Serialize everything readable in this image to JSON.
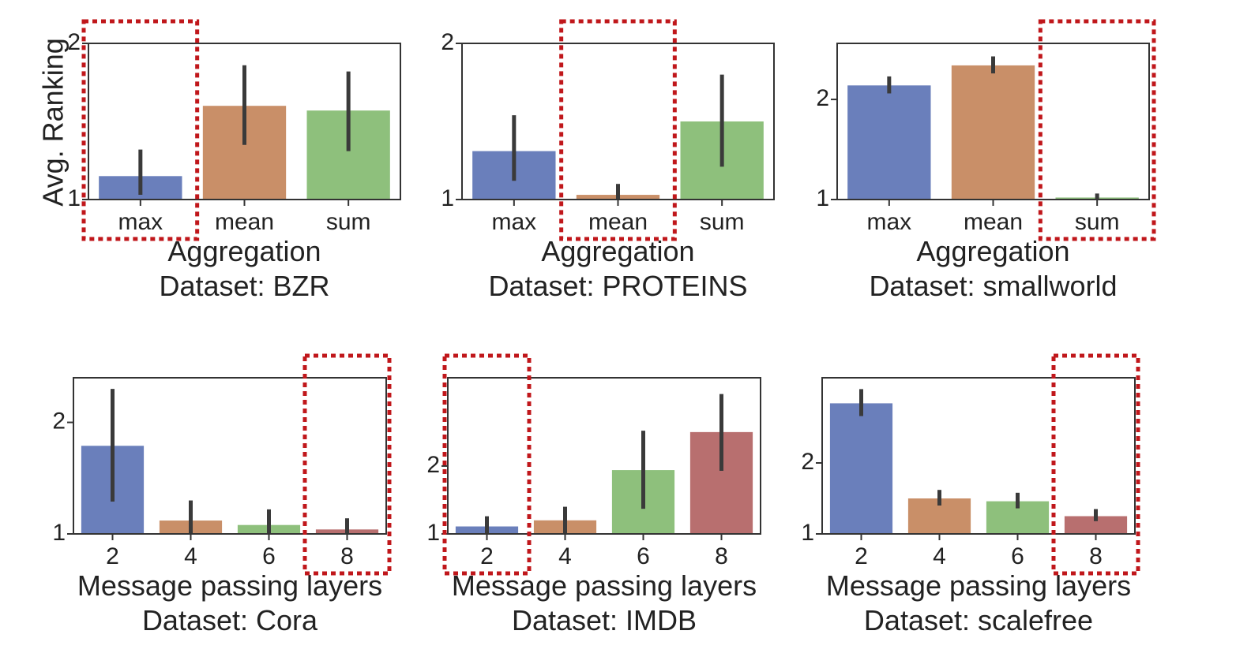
{
  "ylabel": "Avg. Ranking",
  "chart_data": [
    {
      "type": "bar",
      "categories": [
        "max",
        "mean",
        "sum"
      ],
      "values": [
        1.15,
        1.6,
        1.57
      ],
      "errors": [
        [
          1.03,
          1.32
        ],
        [
          1.35,
          1.86
        ],
        [
          1.31,
          1.82
        ]
      ],
      "colors": [
        "#6a7fbb",
        "#c98f68",
        "#8ec07c"
      ],
      "xlabel": "Aggregation",
      "subtitle": "Dataset: BZR",
      "ylim": [
        1,
        2
      ],
      "yticks": [
        1,
        2
      ],
      "highlight": 0
    },
    {
      "type": "bar",
      "categories": [
        "max",
        "mean",
        "sum"
      ],
      "values": [
        1.31,
        1.03,
        1.5
      ],
      "errors": [
        [
          1.12,
          1.54
        ],
        [
          1.0,
          1.1
        ],
        [
          1.21,
          1.8
        ]
      ],
      "colors": [
        "#6a7fbb",
        "#c98f68",
        "#8ec07c"
      ],
      "xlabel": "Aggregation",
      "subtitle": "Dataset: PROTEINS",
      "ylim": [
        1,
        2
      ],
      "yticks": [
        1,
        2
      ],
      "highlight": 1
    },
    {
      "type": "bar",
      "categories": [
        "max",
        "mean",
        "sum"
      ],
      "values": [
        2.14,
        2.34,
        1.02
      ],
      "errors": [
        [
          2.06,
          2.23
        ],
        [
          2.26,
          2.43
        ],
        [
          1.0,
          1.06
        ]
      ],
      "colors": [
        "#6a7fbb",
        "#c98f68",
        "#8ec07c"
      ],
      "xlabel": "Aggregation",
      "subtitle": "Dataset: smallworld",
      "ylim": [
        1,
        2.56
      ],
      "yticks": [
        1,
        2
      ],
      "highlight": 2
    },
    {
      "type": "bar",
      "categories": [
        "2",
        "4",
        "6",
        "8"
      ],
      "values": [
        1.79,
        1.12,
        1.08,
        1.04
      ],
      "errors": [
        [
          1.29,
          2.3
        ],
        [
          1.0,
          1.3
        ],
        [
          1.0,
          1.22
        ],
        [
          1.0,
          1.14
        ]
      ],
      "colors": [
        "#6a7fbb",
        "#c98f68",
        "#8ec07c",
        "#b86f6f"
      ],
      "xlabel": "Message passing layers",
      "subtitle": "Dataset: Cora",
      "ylim": [
        1,
        2.4
      ],
      "yticks": [
        1,
        2
      ],
      "highlight": 3
    },
    {
      "type": "bar",
      "categories": [
        "2",
        "4",
        "6",
        "8"
      ],
      "values": [
        1.11,
        1.2,
        1.94,
        2.5
      ],
      "errors": [
        [
          1.0,
          1.26
        ],
        [
          1.0,
          1.4
        ],
        [
          1.37,
          2.52
        ],
        [
          1.93,
          3.06
        ]
      ],
      "colors": [
        "#6a7fbb",
        "#c98f68",
        "#8ec07c",
        "#b86f6f"
      ],
      "xlabel": "Message passing layers",
      "subtitle": "Dataset: IMDB",
      "ylim": [
        1,
        3.3
      ],
      "yticks": [
        1,
        2
      ],
      "highlight": 0
    },
    {
      "type": "bar",
      "categories": [
        "2",
        "4",
        "6",
        "8"
      ],
      "values": [
        2.84,
        1.5,
        1.46,
        1.25
      ],
      "errors": [
        [
          2.66,
          3.04
        ],
        [
          1.4,
          1.62
        ],
        [
          1.36,
          1.58
        ],
        [
          1.18,
          1.35
        ]
      ],
      "colors": [
        "#6a7fbb",
        "#c98f68",
        "#8ec07c",
        "#b86f6f"
      ],
      "xlabel": "Message passing layers",
      "subtitle": "Dataset: scalefree",
      "ylim": [
        1,
        3.2
      ],
      "yticks": [
        1,
        2
      ],
      "highlight": 3
    }
  ]
}
